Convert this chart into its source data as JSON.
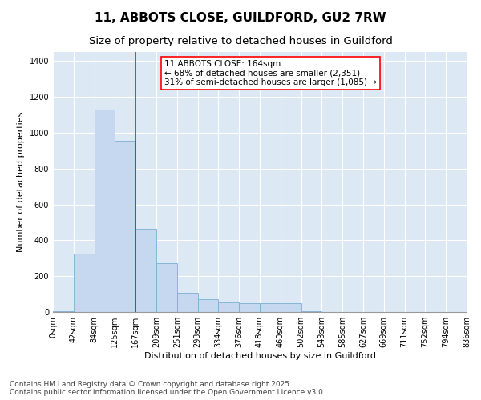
{
  "title": "11, ABBOTS CLOSE, GUILDFORD, GU2 7RW",
  "subtitle": "Size of property relative to detached houses in Guildford",
  "xlabel": "Distribution of detached houses by size in Guildford",
  "ylabel": "Number of detached properties",
  "bar_color": "#c5d8f0",
  "bar_edge_color": "#7aadd4",
  "background_color": "#dde8f5",
  "grid_color": "#ffffff",
  "bin_labels": [
    "0sqm",
    "42sqm",
    "84sqm",
    "125sqm",
    "167sqm",
    "209sqm",
    "251sqm",
    "293sqm",
    "334sqm",
    "376sqm",
    "418sqm",
    "460sqm",
    "502sqm",
    "543sqm",
    "585sqm",
    "627sqm",
    "669sqm",
    "711sqm",
    "752sqm",
    "794sqm",
    "836sqm"
  ],
  "bar_heights": [
    5,
    325,
    1130,
    955,
    465,
    270,
    105,
    70,
    55,
    50,
    50,
    50,
    5,
    0,
    0,
    0,
    0,
    0,
    0,
    0
  ],
  "ylim": [
    0,
    1450
  ],
  "yticks": [
    0,
    200,
    400,
    600,
    800,
    1000,
    1200,
    1400
  ],
  "vline_x": 4,
  "annotation_title": "11 ABBOTS CLOSE: 164sqm",
  "annotation_line1": "← 68% of detached houses are smaller (2,351)",
  "annotation_line2": "31% of semi-detached houses are larger (1,085) →",
  "footer_line1": "Contains HM Land Registry data © Crown copyright and database right 2025.",
  "footer_line2": "Contains public sector information licensed under the Open Government Licence v3.0.",
  "title_fontsize": 11,
  "subtitle_fontsize": 9.5,
  "axis_label_fontsize": 8,
  "tick_fontsize": 7,
  "annotation_fontsize": 7.5,
  "footer_fontsize": 6.5
}
